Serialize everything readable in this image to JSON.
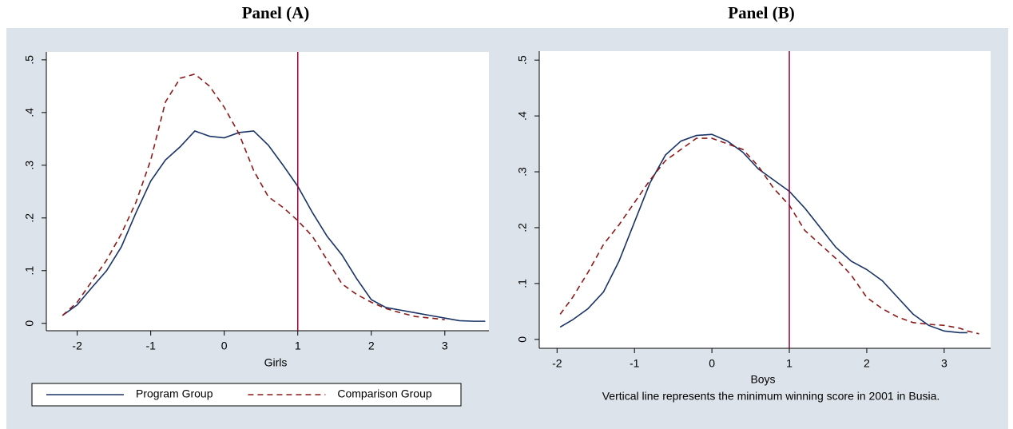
{
  "chart_data": [
    {
      "type": "line",
      "title": "Panel (A)",
      "xlabel": "Girls",
      "x": [
        -2.2,
        -2.0,
        -1.8,
        -1.6,
        -1.4,
        -1.2,
        -1.0,
        -0.8,
        -0.6,
        -0.4,
        -0.2,
        0,
        0.2,
        0.4,
        0.6,
        0.8,
        1.0,
        1.2,
        1.4,
        1.6,
        1.8,
        2.0,
        2.2,
        2.4,
        2.6,
        2.8,
        3.0,
        3.2,
        3.4,
        3.55
      ],
      "series": [
        {
          "name": "Program Group",
          "color": "#1a3366",
          "dash": false,
          "values": [
            0.015,
            0.035,
            0.068,
            0.1,
            0.145,
            0.21,
            0.27,
            0.31,
            0.335,
            0.365,
            0.355,
            0.352,
            0.362,
            0.365,
            0.338,
            0.3,
            0.26,
            0.21,
            0.165,
            0.13,
            0.085,
            0.045,
            0.03,
            0.025,
            0.02,
            0.015,
            0.01,
            0.005,
            0.004,
            0.004
          ]
        },
        {
          "name": "Comparison Group",
          "color": "#8b1a1a",
          "dash": true,
          "values": [
            0.015,
            0.04,
            0.08,
            0.12,
            0.17,
            0.23,
            0.31,
            0.42,
            0.465,
            0.473,
            0.45,
            0.41,
            0.36,
            0.29,
            0.24,
            0.22,
            0.195,
            0.165,
            0.12,
            0.075,
            0.055,
            0.04,
            0.028,
            0.02,
            0.013,
            0.01,
            0.007,
            null,
            null,
            null
          ]
        }
      ],
      "xlim": [
        -2.42,
        3.6
      ],
      "ylim": [
        -0.014,
        0.515
      ],
      "xticks": [
        -2,
        -1,
        0,
        1,
        2,
        3
      ],
      "yticks": [
        0,
        {
          "value": 0.1,
          "label": ".1"
        },
        {
          "value": 0.2,
          "label": ".2"
        },
        {
          "value": 0.3,
          "label": ".3"
        },
        {
          "value": 0.4,
          "label": ".4"
        },
        {
          "value": 0.5,
          "label": ".5"
        }
      ],
      "vline": 1,
      "vline_color": "#a0003a",
      "legend": "bottom"
    },
    {
      "type": "line",
      "title": "Panel (B)",
      "xlabel": "Boys",
      "note": "Vertical line represents the minimum winning score in 2001 in Busia.",
      "x": [
        -1.96,
        -1.8,
        -1.6,
        -1.4,
        -1.2,
        -1.0,
        -0.8,
        -0.6,
        -0.4,
        -0.2,
        0,
        0.2,
        0.4,
        0.6,
        0.8,
        1.0,
        1.2,
        1.4,
        1.6,
        1.8,
        2.0,
        2.2,
        2.4,
        2.6,
        2.8,
        3.0,
        3.2,
        3.3,
        3.45
      ],
      "series": [
        {
          "name": "Program Group",
          "color": "#1a3366",
          "dash": false,
          "values": [
            0.022,
            0.035,
            0.055,
            0.085,
            0.14,
            0.21,
            0.28,
            0.33,
            0.355,
            0.365,
            0.367,
            0.355,
            0.335,
            0.305,
            0.285,
            0.265,
            0.235,
            0.2,
            0.165,
            0.14,
            0.125,
            0.105,
            0.075,
            0.045,
            0.025,
            0.015,
            0.012,
            0.012,
            null
          ]
        },
        {
          "name": "Comparison Group",
          "color": "#8b1a1a",
          "dash": true,
          "values": [
            0.045,
            0.075,
            0.12,
            0.17,
            0.205,
            0.245,
            0.285,
            0.32,
            0.34,
            0.36,
            0.36,
            0.35,
            0.34,
            0.31,
            0.27,
            0.24,
            0.195,
            0.17,
            0.145,
            0.115,
            0.075,
            0.055,
            0.04,
            0.03,
            0.027,
            0.025,
            0.02,
            0.015,
            0.01
          ]
        }
      ],
      "xlim": [
        -2.23,
        3.6
      ],
      "ylim": [
        -0.016,
        0.516
      ],
      "xticks": [
        -2,
        -1,
        0,
        1,
        2,
        3
      ],
      "yticks": [
        0,
        {
          "value": 0.1,
          "label": ".1"
        },
        {
          "value": 0.2,
          "label": ".2"
        },
        {
          "value": 0.3,
          "label": ".3"
        },
        {
          "value": 0.4,
          "label": ".4"
        },
        {
          "value": 0.5,
          "label": ".5"
        }
      ],
      "vline": 1,
      "vline_color": "#a0003a"
    }
  ]
}
